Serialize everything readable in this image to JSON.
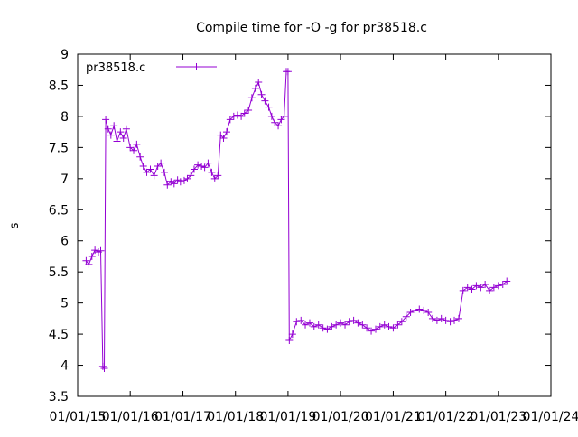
{
  "chart_data": {
    "type": "scatter",
    "title": "Compile time for -O -g for pr38518.c",
    "xlabel": "",
    "ylabel": "s",
    "ylim": [
      3.5,
      9
    ],
    "y_ticks": [
      "3.5",
      "4",
      "4.5",
      "5",
      "5.5",
      "6",
      "6.5",
      "7",
      "7.5",
      "8",
      "8.5",
      "9"
    ],
    "xlim": [
      "2015-01-01",
      "2024-01-01"
    ],
    "x_ticks": [
      "01/01/15",
      "01/01/16",
      "01/01/17",
      "01/01/18",
      "01/01/19",
      "01/01/20",
      "01/01/21",
      "01/01/22",
      "01/01/23",
      "01/01/24"
    ],
    "x_tick_dates": [
      "2015-01-01",
      "2016-01-01",
      "2017-01-01",
      "2018-01-01",
      "2019-01-01",
      "2020-01-01",
      "2021-01-01",
      "2022-01-01",
      "2023-01-01",
      "2024-01-01"
    ],
    "grid": false,
    "legend_position": "top-left",
    "series": [
      {
        "name": "pr38518.c",
        "color": "#9400d3",
        "marker": "plus",
        "points": [
          [
            "2015-03-01",
            5.68
          ],
          [
            "2015-03-20",
            5.62
          ],
          [
            "2015-04-10",
            5.75
          ],
          [
            "2015-05-01",
            5.85
          ],
          [
            "2015-05-25",
            5.82
          ],
          [
            "2015-06-10",
            5.84
          ],
          [
            "2015-06-25",
            3.98
          ],
          [
            "2015-07-05",
            3.95
          ],
          [
            "2015-07-15",
            7.95
          ],
          [
            "2015-08-01",
            7.8
          ],
          [
            "2015-08-20",
            7.7
          ],
          [
            "2015-09-10",
            7.85
          ],
          [
            "2015-10-01",
            7.6
          ],
          [
            "2015-10-25",
            7.75
          ],
          [
            "2015-11-15",
            7.65
          ],
          [
            "2015-12-05",
            7.8
          ],
          [
            "2016-01-01",
            7.5
          ],
          [
            "2016-01-25",
            7.45
          ],
          [
            "2016-02-15",
            7.55
          ],
          [
            "2016-03-10",
            7.35
          ],
          [
            "2016-04-01",
            7.2
          ],
          [
            "2016-04-25",
            7.1
          ],
          [
            "2016-05-20",
            7.15
          ],
          [
            "2016-06-15",
            7.05
          ],
          [
            "2016-07-10",
            7.2
          ],
          [
            "2016-08-01",
            7.25
          ],
          [
            "2016-08-25",
            7.1
          ],
          [
            "2016-09-15",
            6.9
          ],
          [
            "2016-10-10",
            6.95
          ],
          [
            "2016-11-01",
            6.92
          ],
          [
            "2016-11-25",
            6.98
          ],
          [
            "2016-12-15",
            6.95
          ],
          [
            "2017-01-10",
            6.97
          ],
          [
            "2017-02-01",
            7.0
          ],
          [
            "2017-02-25",
            7.05
          ],
          [
            "2017-03-20",
            7.15
          ],
          [
            "2017-04-15",
            7.22
          ],
          [
            "2017-05-10",
            7.2
          ],
          [
            "2017-06-01",
            7.18
          ],
          [
            "2017-06-25",
            7.25
          ],
          [
            "2017-07-20",
            7.1
          ],
          [
            "2017-08-10",
            7.0
          ],
          [
            "2017-09-01",
            7.05
          ],
          [
            "2017-09-20",
            7.7
          ],
          [
            "2017-10-10",
            7.65
          ],
          [
            "2017-11-01",
            7.75
          ],
          [
            "2017-11-25",
            7.95
          ],
          [
            "2017-12-20",
            8.0
          ],
          [
            "2018-01-15",
            8.02
          ],
          [
            "2018-02-10",
            8.0
          ],
          [
            "2018-03-05",
            8.05
          ],
          [
            "2018-04-01",
            8.1
          ],
          [
            "2018-04-25",
            8.3
          ],
          [
            "2018-05-20",
            8.45
          ],
          [
            "2018-06-10",
            8.55
          ],
          [
            "2018-07-01",
            8.35
          ],
          [
            "2018-07-25",
            8.25
          ],
          [
            "2018-08-20",
            8.15
          ],
          [
            "2018-09-10",
            8.0
          ],
          [
            "2018-10-01",
            7.9
          ],
          [
            "2018-10-25",
            7.85
          ],
          [
            "2018-11-15",
            7.95
          ],
          [
            "2018-12-05",
            8.0
          ],
          [
            "2018-12-20",
            8.72
          ],
          [
            "2019-01-01",
            8.72
          ],
          [
            "2019-01-10",
            4.4
          ],
          [
            "2019-02-01",
            4.5
          ],
          [
            "2019-03-01",
            4.7
          ],
          [
            "2019-04-01",
            4.72
          ],
          [
            "2019-05-01",
            4.65
          ],
          [
            "2019-06-01",
            4.68
          ],
          [
            "2019-07-01",
            4.62
          ],
          [
            "2019-08-01",
            4.65
          ],
          [
            "2019-09-01",
            4.6
          ],
          [
            "2019-10-01",
            4.58
          ],
          [
            "2019-11-01",
            4.62
          ],
          [
            "2019-12-01",
            4.65
          ],
          [
            "2020-01-01",
            4.68
          ],
          [
            "2020-02-01",
            4.65
          ],
          [
            "2020-03-01",
            4.7
          ],
          [
            "2020-04-01",
            4.72
          ],
          [
            "2020-05-01",
            4.68
          ],
          [
            "2020-06-01",
            4.65
          ],
          [
            "2020-07-01",
            4.6
          ],
          [
            "2020-08-01",
            4.55
          ],
          [
            "2020-09-01",
            4.58
          ],
          [
            "2020-10-01",
            4.62
          ],
          [
            "2020-11-01",
            4.65
          ],
          [
            "2020-12-01",
            4.62
          ],
          [
            "2021-01-01",
            4.6
          ],
          [
            "2021-02-01",
            4.65
          ],
          [
            "2021-03-01",
            4.7
          ],
          [
            "2021-04-01",
            4.78
          ],
          [
            "2021-05-01",
            4.85
          ],
          [
            "2021-06-01",
            4.88
          ],
          [
            "2021-07-01",
            4.9
          ],
          [
            "2021-08-01",
            4.88
          ],
          [
            "2021-09-01",
            4.85
          ],
          [
            "2021-10-01",
            4.75
          ],
          [
            "2021-11-01",
            4.72
          ],
          [
            "2021-12-01",
            4.75
          ],
          [
            "2022-01-01",
            4.72
          ],
          [
            "2022-02-01",
            4.7
          ],
          [
            "2022-03-01",
            4.72
          ],
          [
            "2022-04-01",
            4.75
          ],
          [
            "2022-05-01",
            5.2
          ],
          [
            "2022-06-01",
            5.25
          ],
          [
            "2022-07-01",
            5.22
          ],
          [
            "2022-08-01",
            5.28
          ],
          [
            "2022-09-01",
            5.25
          ],
          [
            "2022-10-01",
            5.3
          ],
          [
            "2022-11-01",
            5.2
          ],
          [
            "2022-12-01",
            5.25
          ],
          [
            "2023-01-01",
            5.28
          ],
          [
            "2023-02-01",
            5.3
          ],
          [
            "2023-03-01",
            5.35
          ]
        ]
      }
    ]
  }
}
